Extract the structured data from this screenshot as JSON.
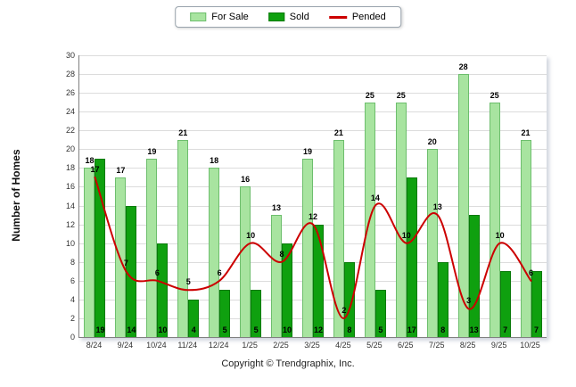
{
  "legend": {
    "items": [
      {
        "label": "For Sale",
        "color": "#A8E4A0",
        "border": "#6DBE6D",
        "type": "bar"
      },
      {
        "label": "Sold",
        "color": "#0FA00F",
        "border": "#0A7A0A",
        "type": "bar"
      },
      {
        "label": "Pended",
        "color": "#CC0000",
        "type": "line"
      }
    ]
  },
  "y_axis_title": "Number of Homes",
  "footer": "Copyright © Trendgraphix, Inc.",
  "chart_data": {
    "type": "bar+line",
    "title": "",
    "xlabel": "",
    "ylabel": "Number of Homes",
    "ylim": [
      0,
      30
    ],
    "ytick_step": 2,
    "grid": true,
    "legend_position": "top",
    "categories": [
      "8/24",
      "9/24",
      "10/24",
      "11/24",
      "12/24",
      "1/25",
      "2/25",
      "3/25",
      "4/25",
      "5/25",
      "6/25",
      "7/25",
      "8/25",
      "9/25",
      "10/25"
    ],
    "series": [
      {
        "name": "For Sale",
        "type": "bar",
        "color": "#A8E4A0",
        "values": [
          18,
          17,
          19,
          21,
          18,
          16,
          13,
          19,
          21,
          25,
          25,
          20,
          28,
          25,
          21
        ]
      },
      {
        "name": "Sold",
        "type": "bar",
        "color": "#0FA00F",
        "values": [
          19,
          14,
          10,
          4,
          5,
          5,
          10,
          12,
          8,
          5,
          17,
          8,
          13,
          7,
          7
        ]
      },
      {
        "name": "Pended",
        "type": "line",
        "color": "#CC0000",
        "values": [
          17,
          7,
          6,
          5,
          6,
          10,
          8,
          12,
          2,
          14,
          10,
          13,
          3,
          10,
          6
        ]
      }
    ]
  }
}
